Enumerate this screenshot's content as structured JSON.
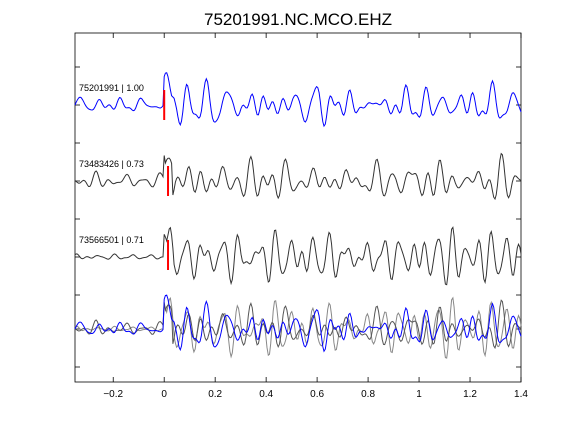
{
  "chart_data": {
    "type": "line",
    "title": "75201991.NC.MCO.EHZ",
    "xlabel": "",
    "ylabel": "",
    "xlim": [
      -0.35,
      1.4
    ],
    "xticks": [
      -0.2,
      0,
      0.2,
      0.4,
      0.6,
      0.8,
      1,
      1.2,
      1.4
    ],
    "xtick_labels": [
      "−0.2",
      "0",
      "0.2",
      "0.4",
      "0.6",
      "0.8",
      "1",
      "1.2",
      "1.4"
    ],
    "grid": false,
    "legend": "none",
    "series": [
      {
        "label": "75201991 | 1.00",
        "color": "#0000ff",
        "pick_time": 0.0,
        "onset": 0.0
      },
      {
        "label": "73483426 | 0.73",
        "color": "#333333",
        "pick_time": 0.015,
        "onset": 0.0
      },
      {
        "label": "73566501 | 0.71",
        "color": "#333333",
        "pick_time": 0.015,
        "onset": 0.0
      }
    ],
    "overlay": {
      "colors": [
        "#0000ff",
        "#555555",
        "#888888"
      ]
    },
    "pick_color": "#ff0000"
  }
}
